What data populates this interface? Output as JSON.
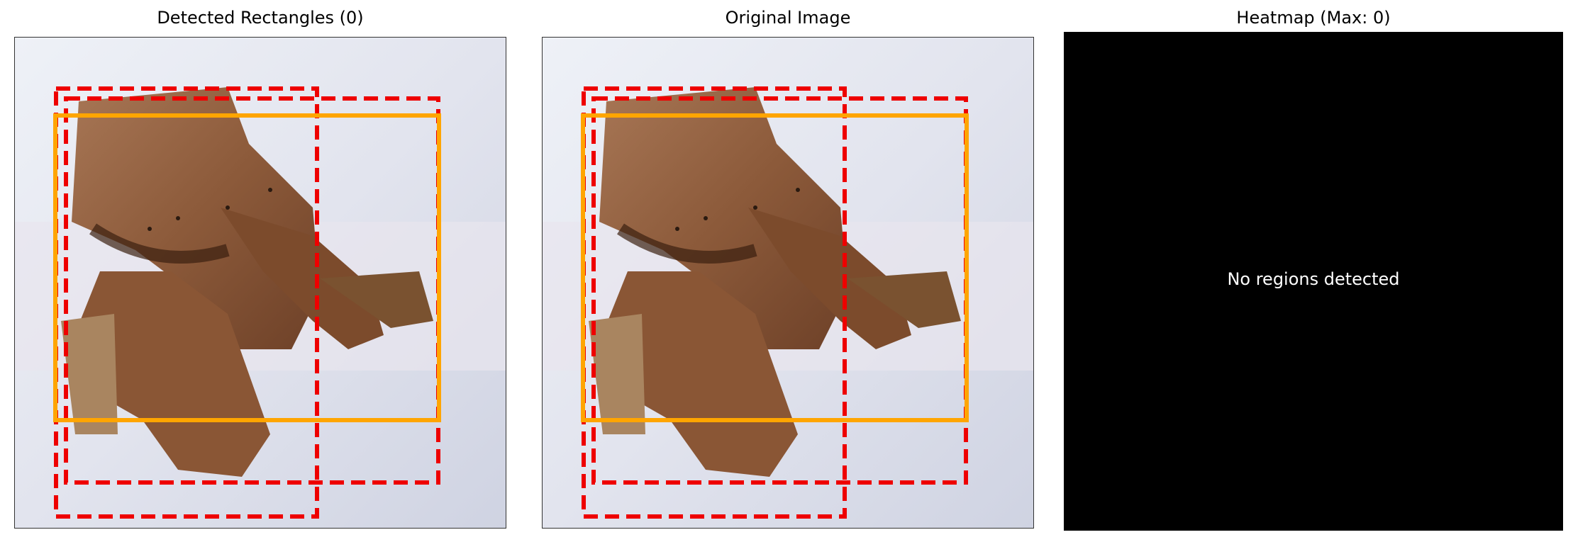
{
  "panels": [
    {
      "title": "Detected Rectangles (0)"
    },
    {
      "title": "Original Image"
    },
    {
      "title": "Heatmap (Max: 0)",
      "message": "No regions detected"
    }
  ],
  "colors": {
    "dashed_box": "#ee0000",
    "solid_box": "#ffa500",
    "heatmap_bg": "#000000",
    "heatmap_text": "#ffffff"
  }
}
